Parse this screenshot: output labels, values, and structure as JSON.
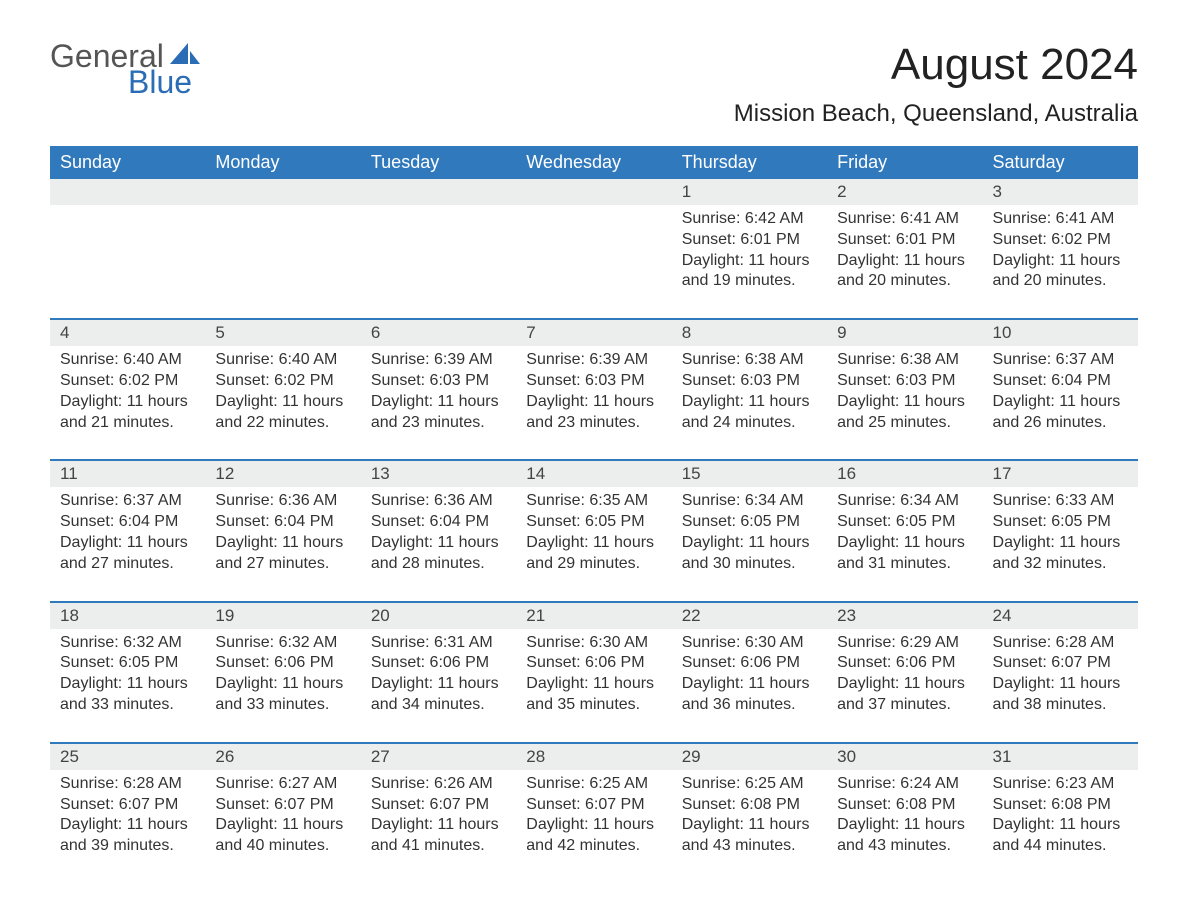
{
  "logo": {
    "text_top": "General",
    "text_bottom": "Blue",
    "icon_color": "#2a6db5",
    "top_color": "#555555",
    "bottom_color": "#2a6db5"
  },
  "title": "August 2024",
  "location": "Mission Beach, Queensland, Australia",
  "colors": {
    "header_bg": "#3179bd",
    "header_text": "#ffffff",
    "row_border": "#3179bd",
    "daynum_bg": "#eceded",
    "body_text": "#333333"
  },
  "day_names": [
    "Sunday",
    "Monday",
    "Tuesday",
    "Wednesday",
    "Thursday",
    "Friday",
    "Saturday"
  ],
  "weeks": [
    [
      null,
      null,
      null,
      null,
      {
        "day": "1",
        "sunrise": "Sunrise: 6:42 AM",
        "sunset": "Sunset: 6:01 PM",
        "daylight1": "Daylight: 11 hours",
        "daylight2": "and 19 minutes."
      },
      {
        "day": "2",
        "sunrise": "Sunrise: 6:41 AM",
        "sunset": "Sunset: 6:01 PM",
        "daylight1": "Daylight: 11 hours",
        "daylight2": "and 20 minutes."
      },
      {
        "day": "3",
        "sunrise": "Sunrise: 6:41 AM",
        "sunset": "Sunset: 6:02 PM",
        "daylight1": "Daylight: 11 hours",
        "daylight2": "and 20 minutes."
      }
    ],
    [
      {
        "day": "4",
        "sunrise": "Sunrise: 6:40 AM",
        "sunset": "Sunset: 6:02 PM",
        "daylight1": "Daylight: 11 hours",
        "daylight2": "and 21 minutes."
      },
      {
        "day": "5",
        "sunrise": "Sunrise: 6:40 AM",
        "sunset": "Sunset: 6:02 PM",
        "daylight1": "Daylight: 11 hours",
        "daylight2": "and 22 minutes."
      },
      {
        "day": "6",
        "sunrise": "Sunrise: 6:39 AM",
        "sunset": "Sunset: 6:03 PM",
        "daylight1": "Daylight: 11 hours",
        "daylight2": "and 23 minutes."
      },
      {
        "day": "7",
        "sunrise": "Sunrise: 6:39 AM",
        "sunset": "Sunset: 6:03 PM",
        "daylight1": "Daylight: 11 hours",
        "daylight2": "and 23 minutes."
      },
      {
        "day": "8",
        "sunrise": "Sunrise: 6:38 AM",
        "sunset": "Sunset: 6:03 PM",
        "daylight1": "Daylight: 11 hours",
        "daylight2": "and 24 minutes."
      },
      {
        "day": "9",
        "sunrise": "Sunrise: 6:38 AM",
        "sunset": "Sunset: 6:03 PM",
        "daylight1": "Daylight: 11 hours",
        "daylight2": "and 25 minutes."
      },
      {
        "day": "10",
        "sunrise": "Sunrise: 6:37 AM",
        "sunset": "Sunset: 6:04 PM",
        "daylight1": "Daylight: 11 hours",
        "daylight2": "and 26 minutes."
      }
    ],
    [
      {
        "day": "11",
        "sunrise": "Sunrise: 6:37 AM",
        "sunset": "Sunset: 6:04 PM",
        "daylight1": "Daylight: 11 hours",
        "daylight2": "and 27 minutes."
      },
      {
        "day": "12",
        "sunrise": "Sunrise: 6:36 AM",
        "sunset": "Sunset: 6:04 PM",
        "daylight1": "Daylight: 11 hours",
        "daylight2": "and 27 minutes."
      },
      {
        "day": "13",
        "sunrise": "Sunrise: 6:36 AM",
        "sunset": "Sunset: 6:04 PM",
        "daylight1": "Daylight: 11 hours",
        "daylight2": "and 28 minutes."
      },
      {
        "day": "14",
        "sunrise": "Sunrise: 6:35 AM",
        "sunset": "Sunset: 6:05 PM",
        "daylight1": "Daylight: 11 hours",
        "daylight2": "and 29 minutes."
      },
      {
        "day": "15",
        "sunrise": "Sunrise: 6:34 AM",
        "sunset": "Sunset: 6:05 PM",
        "daylight1": "Daylight: 11 hours",
        "daylight2": "and 30 minutes."
      },
      {
        "day": "16",
        "sunrise": "Sunrise: 6:34 AM",
        "sunset": "Sunset: 6:05 PM",
        "daylight1": "Daylight: 11 hours",
        "daylight2": "and 31 minutes."
      },
      {
        "day": "17",
        "sunrise": "Sunrise: 6:33 AM",
        "sunset": "Sunset: 6:05 PM",
        "daylight1": "Daylight: 11 hours",
        "daylight2": "and 32 minutes."
      }
    ],
    [
      {
        "day": "18",
        "sunrise": "Sunrise: 6:32 AM",
        "sunset": "Sunset: 6:05 PM",
        "daylight1": "Daylight: 11 hours",
        "daylight2": "and 33 minutes."
      },
      {
        "day": "19",
        "sunrise": "Sunrise: 6:32 AM",
        "sunset": "Sunset: 6:06 PM",
        "daylight1": "Daylight: 11 hours",
        "daylight2": "and 33 minutes."
      },
      {
        "day": "20",
        "sunrise": "Sunrise: 6:31 AM",
        "sunset": "Sunset: 6:06 PM",
        "daylight1": "Daylight: 11 hours",
        "daylight2": "and 34 minutes."
      },
      {
        "day": "21",
        "sunrise": "Sunrise: 6:30 AM",
        "sunset": "Sunset: 6:06 PM",
        "daylight1": "Daylight: 11 hours",
        "daylight2": "and 35 minutes."
      },
      {
        "day": "22",
        "sunrise": "Sunrise: 6:30 AM",
        "sunset": "Sunset: 6:06 PM",
        "daylight1": "Daylight: 11 hours",
        "daylight2": "and 36 minutes."
      },
      {
        "day": "23",
        "sunrise": "Sunrise: 6:29 AM",
        "sunset": "Sunset: 6:06 PM",
        "daylight1": "Daylight: 11 hours",
        "daylight2": "and 37 minutes."
      },
      {
        "day": "24",
        "sunrise": "Sunrise: 6:28 AM",
        "sunset": "Sunset: 6:07 PM",
        "daylight1": "Daylight: 11 hours",
        "daylight2": "and 38 minutes."
      }
    ],
    [
      {
        "day": "25",
        "sunrise": "Sunrise: 6:28 AM",
        "sunset": "Sunset: 6:07 PM",
        "daylight1": "Daylight: 11 hours",
        "daylight2": "and 39 minutes."
      },
      {
        "day": "26",
        "sunrise": "Sunrise: 6:27 AM",
        "sunset": "Sunset: 6:07 PM",
        "daylight1": "Daylight: 11 hours",
        "daylight2": "and 40 minutes."
      },
      {
        "day": "27",
        "sunrise": "Sunrise: 6:26 AM",
        "sunset": "Sunset: 6:07 PM",
        "daylight1": "Daylight: 11 hours",
        "daylight2": "and 41 minutes."
      },
      {
        "day": "28",
        "sunrise": "Sunrise: 6:25 AM",
        "sunset": "Sunset: 6:07 PM",
        "daylight1": "Daylight: 11 hours",
        "daylight2": "and 42 minutes."
      },
      {
        "day": "29",
        "sunrise": "Sunrise: 6:25 AM",
        "sunset": "Sunset: 6:08 PM",
        "daylight1": "Daylight: 11 hours",
        "daylight2": "and 43 minutes."
      },
      {
        "day": "30",
        "sunrise": "Sunrise: 6:24 AM",
        "sunset": "Sunset: 6:08 PM",
        "daylight1": "Daylight: 11 hours",
        "daylight2": "and 43 minutes."
      },
      {
        "day": "31",
        "sunrise": "Sunrise: 6:23 AM",
        "sunset": "Sunset: 6:08 PM",
        "daylight1": "Daylight: 11 hours",
        "daylight2": "and 44 minutes."
      }
    ]
  ]
}
